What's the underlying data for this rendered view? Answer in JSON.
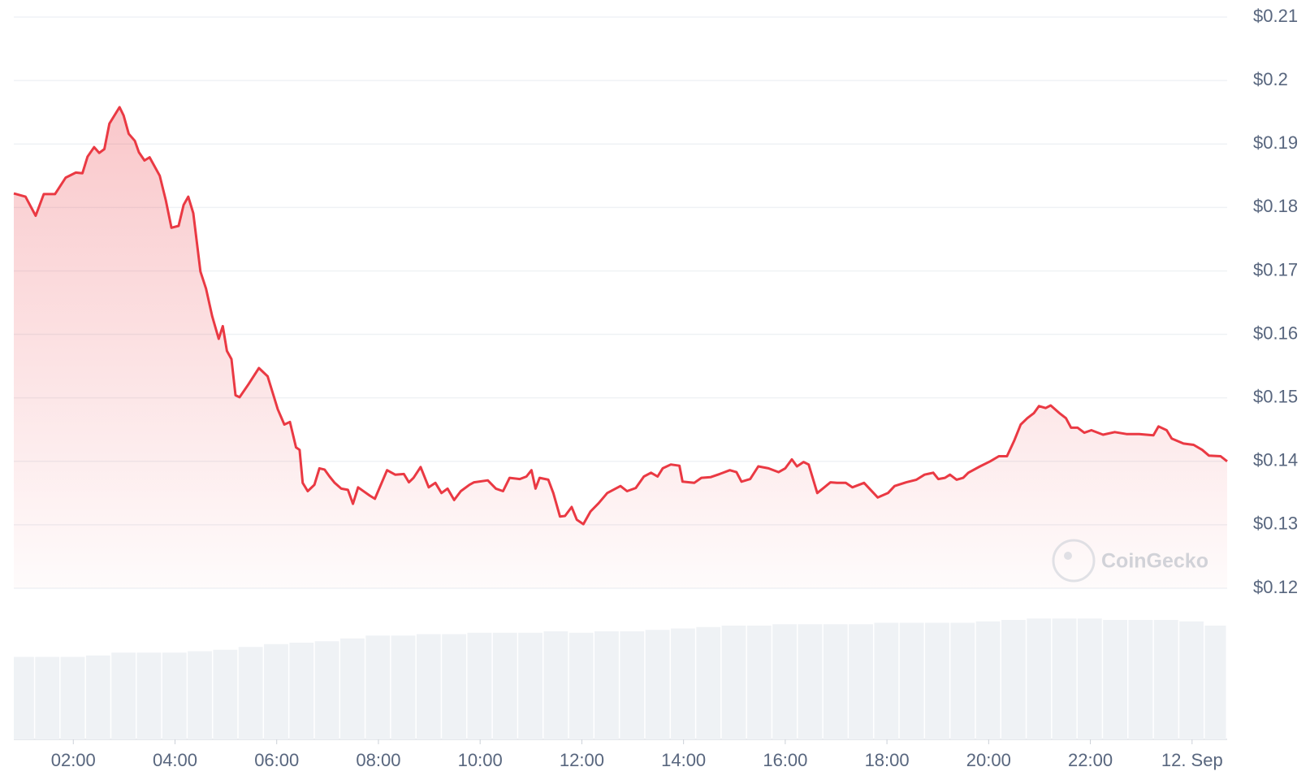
{
  "chart_data": {
    "type": "line",
    "watermark": "CoinGecko",
    "series": [
      {
        "color": "#ea3943",
        "x": [
          0.83,
          1.06,
          1.26,
          1.42,
          1.64,
          1.85,
          2.05,
          2.18,
          2.28,
          2.41,
          2.51,
          2.61,
          2.71,
          2.91,
          2.99,
          3.09,
          3.21,
          3.29,
          3.4,
          3.5,
          3.7,
          3.82,
          3.93,
          4.07,
          4.17,
          4.26,
          4.36,
          4.5,
          4.61,
          4.73,
          4.86,
          4.94,
          5.02,
          5.11,
          5.19,
          5.27,
          5.44,
          5.65,
          5.82,
          6.02,
          6.15,
          6.26,
          6.38,
          6.45,
          6.51,
          6.61,
          6.74,
          6.84,
          6.94,
          7.04,
          7.14,
          7.27,
          7.4,
          7.5,
          7.6,
          7.83,
          7.93,
          8.17,
          8.33,
          8.5,
          8.6,
          8.69,
          8.83,
          8.99,
          9.12,
          9.24,
          9.36,
          9.49,
          9.62,
          9.79,
          9.88,
          10.15,
          10.31,
          10.45,
          10.58,
          10.78,
          10.91,
          11.01,
          11.09,
          11.17,
          11.34,
          11.44,
          11.57,
          11.67,
          11.8,
          11.9,
          12.03,
          12.17,
          12.33,
          12.5,
          12.76,
          12.89,
          13.06,
          13.22,
          13.36,
          13.49,
          13.59,
          13.75,
          13.92,
          13.98,
          14.21,
          14.35,
          14.53,
          14.71,
          14.91,
          15.04,
          15.14,
          15.31,
          15.47,
          15.67,
          15.87,
          16.0,
          16.13,
          16.23,
          16.36,
          16.46,
          16.63,
          16.89,
          17.02,
          17.19,
          17.32,
          17.55,
          17.82,
          18.02,
          18.15,
          18.38,
          18.58,
          18.74,
          18.91,
          19.01,
          19.14,
          19.24,
          19.37,
          19.5,
          19.6,
          19.83,
          20.03,
          20.2,
          20.36,
          20.5,
          20.63,
          20.76,
          20.89,
          20.99,
          21.12,
          21.22,
          21.39,
          21.52,
          21.62,
          21.75,
          21.88,
          22.02,
          22.25,
          22.48,
          22.71,
          22.96,
          23.24,
          23.34,
          23.5,
          23.6,
          23.83,
          24.03,
          24.2,
          24.33,
          24.56,
          24.69
        ],
        "values": [
          0.1822,
          0.1817,
          0.1787,
          0.1821,
          0.1821,
          0.1847,
          0.1855,
          0.1854,
          0.188,
          0.1895,
          0.1886,
          0.1892,
          0.1932,
          0.1958,
          0.1945,
          0.1916,
          0.1905,
          0.1887,
          0.1874,
          0.1879,
          0.185,
          0.1811,
          0.1768,
          0.1771,
          0.1804,
          0.1817,
          0.1791,
          0.1699,
          0.1672,
          0.1629,
          0.1593,
          0.1613,
          0.1574,
          0.1561,
          0.1504,
          0.1501,
          0.1521,
          0.1547,
          0.1534,
          0.1482,
          0.1458,
          0.1462,
          0.1422,
          0.1418,
          0.1366,
          0.1353,
          0.1363,
          0.1389,
          0.1387,
          0.1376,
          0.1366,
          0.1357,
          0.1355,
          0.1333,
          0.1359,
          0.1346,
          0.1341,
          0.1386,
          0.1379,
          0.138,
          0.1367,
          0.1374,
          0.1391,
          0.1359,
          0.1366,
          0.135,
          0.1357,
          0.1339,
          0.1353,
          0.1363,
          0.1367,
          0.137,
          0.1357,
          0.1353,
          0.1374,
          0.1372,
          0.1376,
          0.1386,
          0.1357,
          0.1374,
          0.1371,
          0.135,
          0.1313,
          0.1314,
          0.1328,
          0.1308,
          0.1301,
          0.1321,
          0.1334,
          0.135,
          0.1361,
          0.1353,
          0.1358,
          0.1376,
          0.1382,
          0.1376,
          0.1389,
          0.1395,
          0.1393,
          0.1368,
          0.1366,
          0.1374,
          0.1375,
          0.138,
          0.1386,
          0.1383,
          0.1368,
          0.1372,
          0.1392,
          0.1389,
          0.1383,
          0.1389,
          0.1403,
          0.1392,
          0.1399,
          0.1395,
          0.135,
          0.1367,
          0.1366,
          0.1366,
          0.1359,
          0.1366,
          0.1343,
          0.135,
          0.1361,
          0.1367,
          0.1371,
          0.1379,
          0.1382,
          0.1372,
          0.1374,
          0.1379,
          0.1371,
          0.1374,
          0.1382,
          0.1392,
          0.14,
          0.1408,
          0.1408,
          0.1432,
          0.1458,
          0.1468,
          0.1476,
          0.1487,
          0.1484,
          0.1488,
          0.1476,
          0.1468,
          0.1453,
          0.1453,
          0.1445,
          0.1449,
          0.1442,
          0.1446,
          0.1443,
          0.1443,
          0.1441,
          0.1455,
          0.1449,
          0.1436,
          0.1428,
          0.1426,
          0.1418,
          0.1409,
          0.1408,
          0.14
        ]
      }
    ],
    "volume": {
      "color": "#eff2f5",
      "ylim": [
        0,
        100
      ],
      "x": [
        1,
        1.5,
        2,
        2.5,
        3,
        3.5,
        4,
        4.5,
        5,
        5.5,
        6,
        6.5,
        7,
        7.5,
        8,
        8.5,
        9,
        9.5,
        10,
        10.5,
        11,
        11.5,
        12,
        12.5,
        13,
        13.5,
        14,
        14.5,
        15,
        15.5,
        16,
        16.5,
        17,
        17.5,
        18,
        18.5,
        19,
        19.5,
        20,
        20.5,
        21,
        21.5,
        22,
        22.5,
        23,
        23.5,
        24,
        24.5
      ],
      "values": [
        58,
        58,
        58,
        59,
        61,
        61,
        61,
        62,
        63,
        65,
        67,
        68,
        69,
        71,
        73,
        73,
        74,
        74,
        75,
        75,
        75,
        76,
        75,
        76,
        76,
        77,
        78,
        79,
        80,
        80,
        81,
        81,
        81,
        81,
        82,
        82,
        82,
        82,
        83,
        84,
        85,
        85,
        85,
        84,
        84,
        84,
        83,
        80
      ]
    },
    "xlim": [
      0.83,
      24.69
    ],
    "xticks": [
      {
        "value": 2,
        "label": "02:00"
      },
      {
        "value": 4,
        "label": "04:00"
      },
      {
        "value": 6,
        "label": "06:00"
      },
      {
        "value": 8,
        "label": "08:00"
      },
      {
        "value": 10,
        "label": "10:00"
      },
      {
        "value": 12,
        "label": "12:00"
      },
      {
        "value": 14,
        "label": "14:00"
      },
      {
        "value": 16,
        "label": "16:00"
      },
      {
        "value": 18,
        "label": "18:00"
      },
      {
        "value": 20,
        "label": "20:00"
      },
      {
        "value": 22,
        "label": "22:00"
      },
      {
        "value": 24,
        "label": "12. Sep"
      }
    ],
    "ylim": [
      0.12,
      0.21
    ],
    "yticks": [
      {
        "value": 0.12,
        "label": "$0.12"
      },
      {
        "value": 0.13,
        "label": "$0.13"
      },
      {
        "value": 0.14,
        "label": "$0.14"
      },
      {
        "value": 0.15,
        "label": "$0.15"
      },
      {
        "value": 0.16,
        "label": "$0.16"
      },
      {
        "value": 0.17,
        "label": "$0.17"
      },
      {
        "value": 0.18,
        "label": "$0.18"
      },
      {
        "value": 0.19,
        "label": "$0.19"
      },
      {
        "value": 0.2,
        "label": "$0.2"
      },
      {
        "value": 0.21,
        "label": "$0.21"
      }
    ],
    "grid": true
  }
}
